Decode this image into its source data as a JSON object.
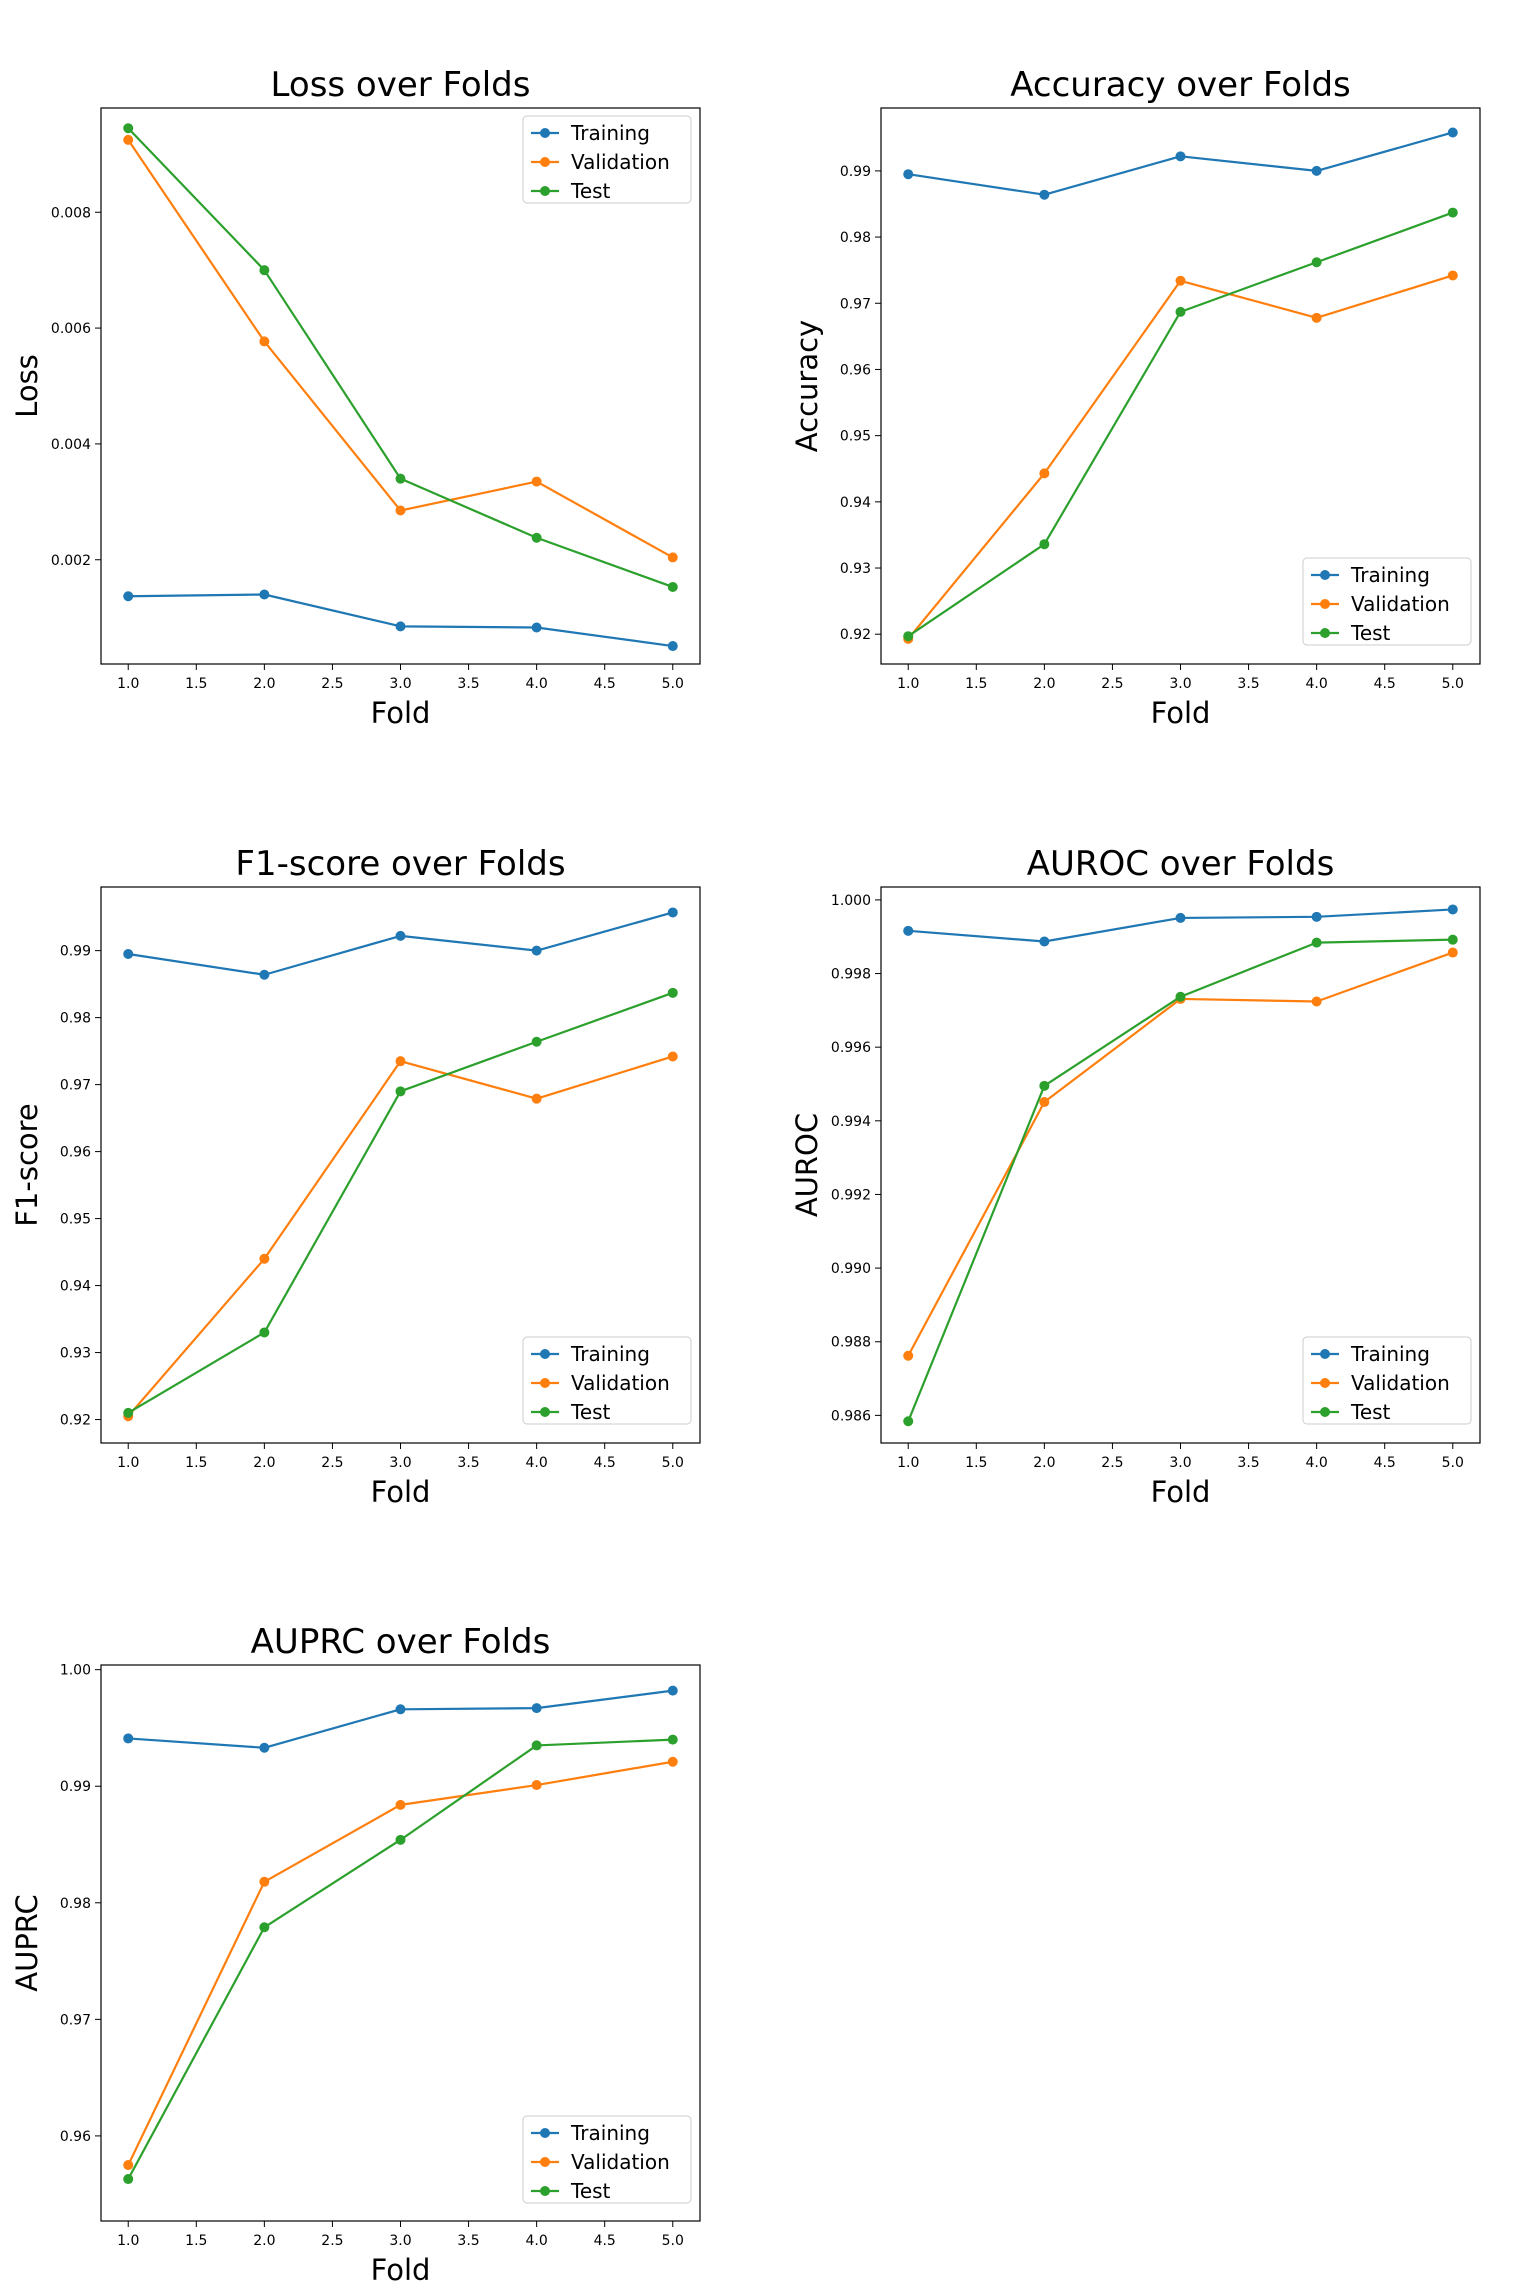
{
  "colors": {
    "training": "#1f77b4",
    "validation": "#ff7f0e",
    "test": "#2ca02c"
  },
  "chart_data": [
    {
      "type": "line",
      "title": "Loss over Folds",
      "xlabel": "Fold",
      "ylabel": "Loss",
      "x": [
        1,
        2,
        3,
        4,
        5
      ],
      "xlim": [
        0.8,
        5.2
      ],
      "xticks": [
        "1.0",
        "1.5",
        "2.0",
        "2.5",
        "3.0",
        "3.5",
        "4.0",
        "4.5",
        "5.0"
      ],
      "ylim": [
        0.0002,
        0.0098
      ],
      "yticks": [
        "0.002",
        "0.004",
        "0.006",
        "0.008"
      ],
      "legend": "top-right",
      "grid": false,
      "series": [
        {
          "name": "Training",
          "values": [
            0.00137,
            0.0014,
            0.00085,
            0.00083,
            0.00051
          ]
        },
        {
          "name": "Validation",
          "values": [
            0.00925,
            0.00577,
            0.00285,
            0.00335,
            0.00204
          ]
        },
        {
          "name": "Test",
          "values": [
            0.00945,
            0.007,
            0.0034,
            0.00238,
            0.00153
          ]
        }
      ]
    },
    {
      "type": "line",
      "title": "Accuracy over Folds",
      "xlabel": "Fold",
      "ylabel": "Accuracy",
      "x": [
        1,
        2,
        3,
        4,
        5
      ],
      "xlim": [
        0.8,
        5.2
      ],
      "xticks": [
        "1.0",
        "1.5",
        "2.0",
        "2.5",
        "3.0",
        "3.5",
        "4.0",
        "4.5",
        "5.0"
      ],
      "ylim": [
        0.9155,
        0.9995
      ],
      "yticks": [
        "0.92",
        "0.93",
        "0.94",
        "0.95",
        "0.96",
        "0.97",
        "0.98",
        "0.99"
      ],
      "legend": "bottom-right",
      "grid": false,
      "series": [
        {
          "name": "Training",
          "values": [
            0.9895,
            0.9864,
            0.9922,
            0.99,
            0.9958
          ]
        },
        {
          "name": "Validation",
          "values": [
            0.9193,
            0.9443,
            0.9734,
            0.9678,
            0.9742
          ]
        },
        {
          "name": "Test",
          "values": [
            0.9197,
            0.9336,
            0.9687,
            0.9762,
            0.9837
          ]
        }
      ]
    },
    {
      "type": "line",
      "title": "F1-score over Folds",
      "xlabel": "Fold",
      "ylabel": "F1-score",
      "x": [
        1,
        2,
        3,
        4,
        5
      ],
      "xlim": [
        0.8,
        5.2
      ],
      "xticks": [
        "1.0",
        "1.5",
        "2.0",
        "2.5",
        "3.0",
        "3.5",
        "4.0",
        "4.5",
        "5.0"
      ],
      "ylim": [
        0.9165,
        0.9995
      ],
      "yticks": [
        "0.92",
        "0.93",
        "0.94",
        "0.95",
        "0.96",
        "0.97",
        "0.98",
        "0.99"
      ],
      "legend": "bottom-right",
      "grid": false,
      "series": [
        {
          "name": "Training",
          "values": [
            0.9895,
            0.9864,
            0.9922,
            0.99,
            0.9957
          ]
        },
        {
          "name": "Validation",
          "values": [
            0.9205,
            0.944,
            0.9735,
            0.9679,
            0.9742
          ]
        },
        {
          "name": "Test",
          "values": [
            0.921,
            0.933,
            0.969,
            0.9764,
            0.9837
          ]
        }
      ]
    },
    {
      "type": "line",
      "title": "AUROC over Folds",
      "xlabel": "Fold",
      "ylabel": "AUROC",
      "x": [
        1,
        2,
        3,
        4,
        5
      ],
      "xlim": [
        0.8,
        5.2
      ],
      "xticks": [
        "1.0",
        "1.5",
        "2.0",
        "2.5",
        "3.0",
        "3.5",
        "4.0",
        "4.5",
        "5.0"
      ],
      "ylim": [
        0.98525,
        1.00035
      ],
      "yticks": [
        "0.986",
        "0.988",
        "0.990",
        "0.992",
        "0.994",
        "0.996",
        "0.998",
        "1.000"
      ],
      "legend": "bottom-right",
      "grid": false,
      "series": [
        {
          "name": "Training",
          "values": [
            0.99916,
            0.99887,
            0.99951,
            0.99954,
            0.99974
          ]
        },
        {
          "name": "Validation",
          "values": [
            0.98762,
            0.99451,
            0.99731,
            0.99724,
            0.99857
          ]
        },
        {
          "name": "Test",
          "values": [
            0.98584,
            0.99495,
            0.99737,
            0.99884,
            0.99892
          ]
        }
      ]
    },
    {
      "type": "line",
      "title": "AUPRC over Folds",
      "xlabel": "Fold",
      "ylabel": "AUPRC",
      "x": [
        1,
        2,
        3,
        4,
        5
      ],
      "xlim": [
        0.8,
        5.2
      ],
      "xticks": [
        "1.0",
        "1.5",
        "2.0",
        "2.5",
        "3.0",
        "3.5",
        "4.0",
        "4.5",
        "5.0"
      ],
      "ylim": [
        0.9527,
        1.0004
      ],
      "yticks": [
        "0.96",
        "0.97",
        "0.98",
        "0.99",
        "1.00"
      ],
      "legend": "bottom-right",
      "grid": false,
      "series": [
        {
          "name": "Training",
          "values": [
            0.9941,
            0.9933,
            0.9966,
            0.9967,
            0.9982
          ]
        },
        {
          "name": "Validation",
          "values": [
            0.9575,
            0.9818,
            0.9884,
            0.9901,
            0.9921
          ]
        },
        {
          "name": "Test",
          "values": [
            0.9563,
            0.9779,
            0.9854,
            0.9935,
            0.994
          ]
        }
      ]
    }
  ]
}
